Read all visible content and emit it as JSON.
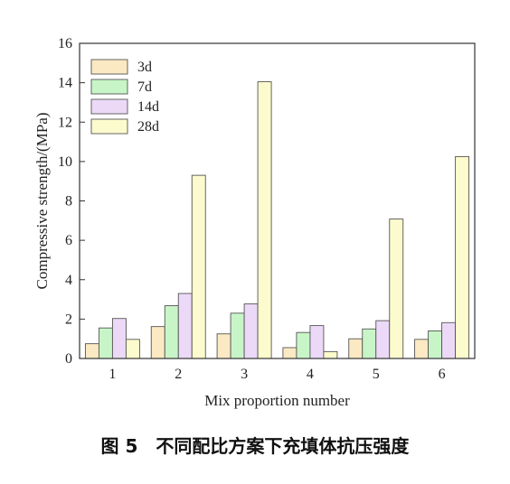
{
  "chart_data": {
    "type": "bar",
    "title": "",
    "xlabel": "Mix proportion number",
    "ylabel": "Compressive strength/(MPa)",
    "categories": [
      "1",
      "2",
      "3",
      "4",
      "5",
      "6"
    ],
    "ylim": [
      0,
      16
    ],
    "yticks": [
      "0",
      "2",
      "4",
      "6",
      "8",
      "10",
      "12",
      "14",
      "16"
    ],
    "grid": false,
    "legend_position": "top-left",
    "series": [
      {
        "name": "3d",
        "color": "#fbe9c3",
        "values": [
          0.75,
          1.62,
          1.25,
          0.55,
          1.0,
          0.97
        ]
      },
      {
        "name": "7d",
        "color": "#c8f5c8",
        "values": [
          1.55,
          2.68,
          2.3,
          1.32,
          1.5,
          1.4
        ]
      },
      {
        "name": "14d",
        "color": "#ecd9f7",
        "values": [
          2.03,
          3.3,
          2.77,
          1.67,
          1.92,
          1.82
        ]
      },
      {
        "name": "28d",
        "color": "#fcfbcd",
        "values": [
          0.97,
          9.3,
          14.05,
          0.35,
          7.08,
          10.25
        ]
      }
    ]
  },
  "caption": "图 5　不同配比方案下充填体抗压强度"
}
